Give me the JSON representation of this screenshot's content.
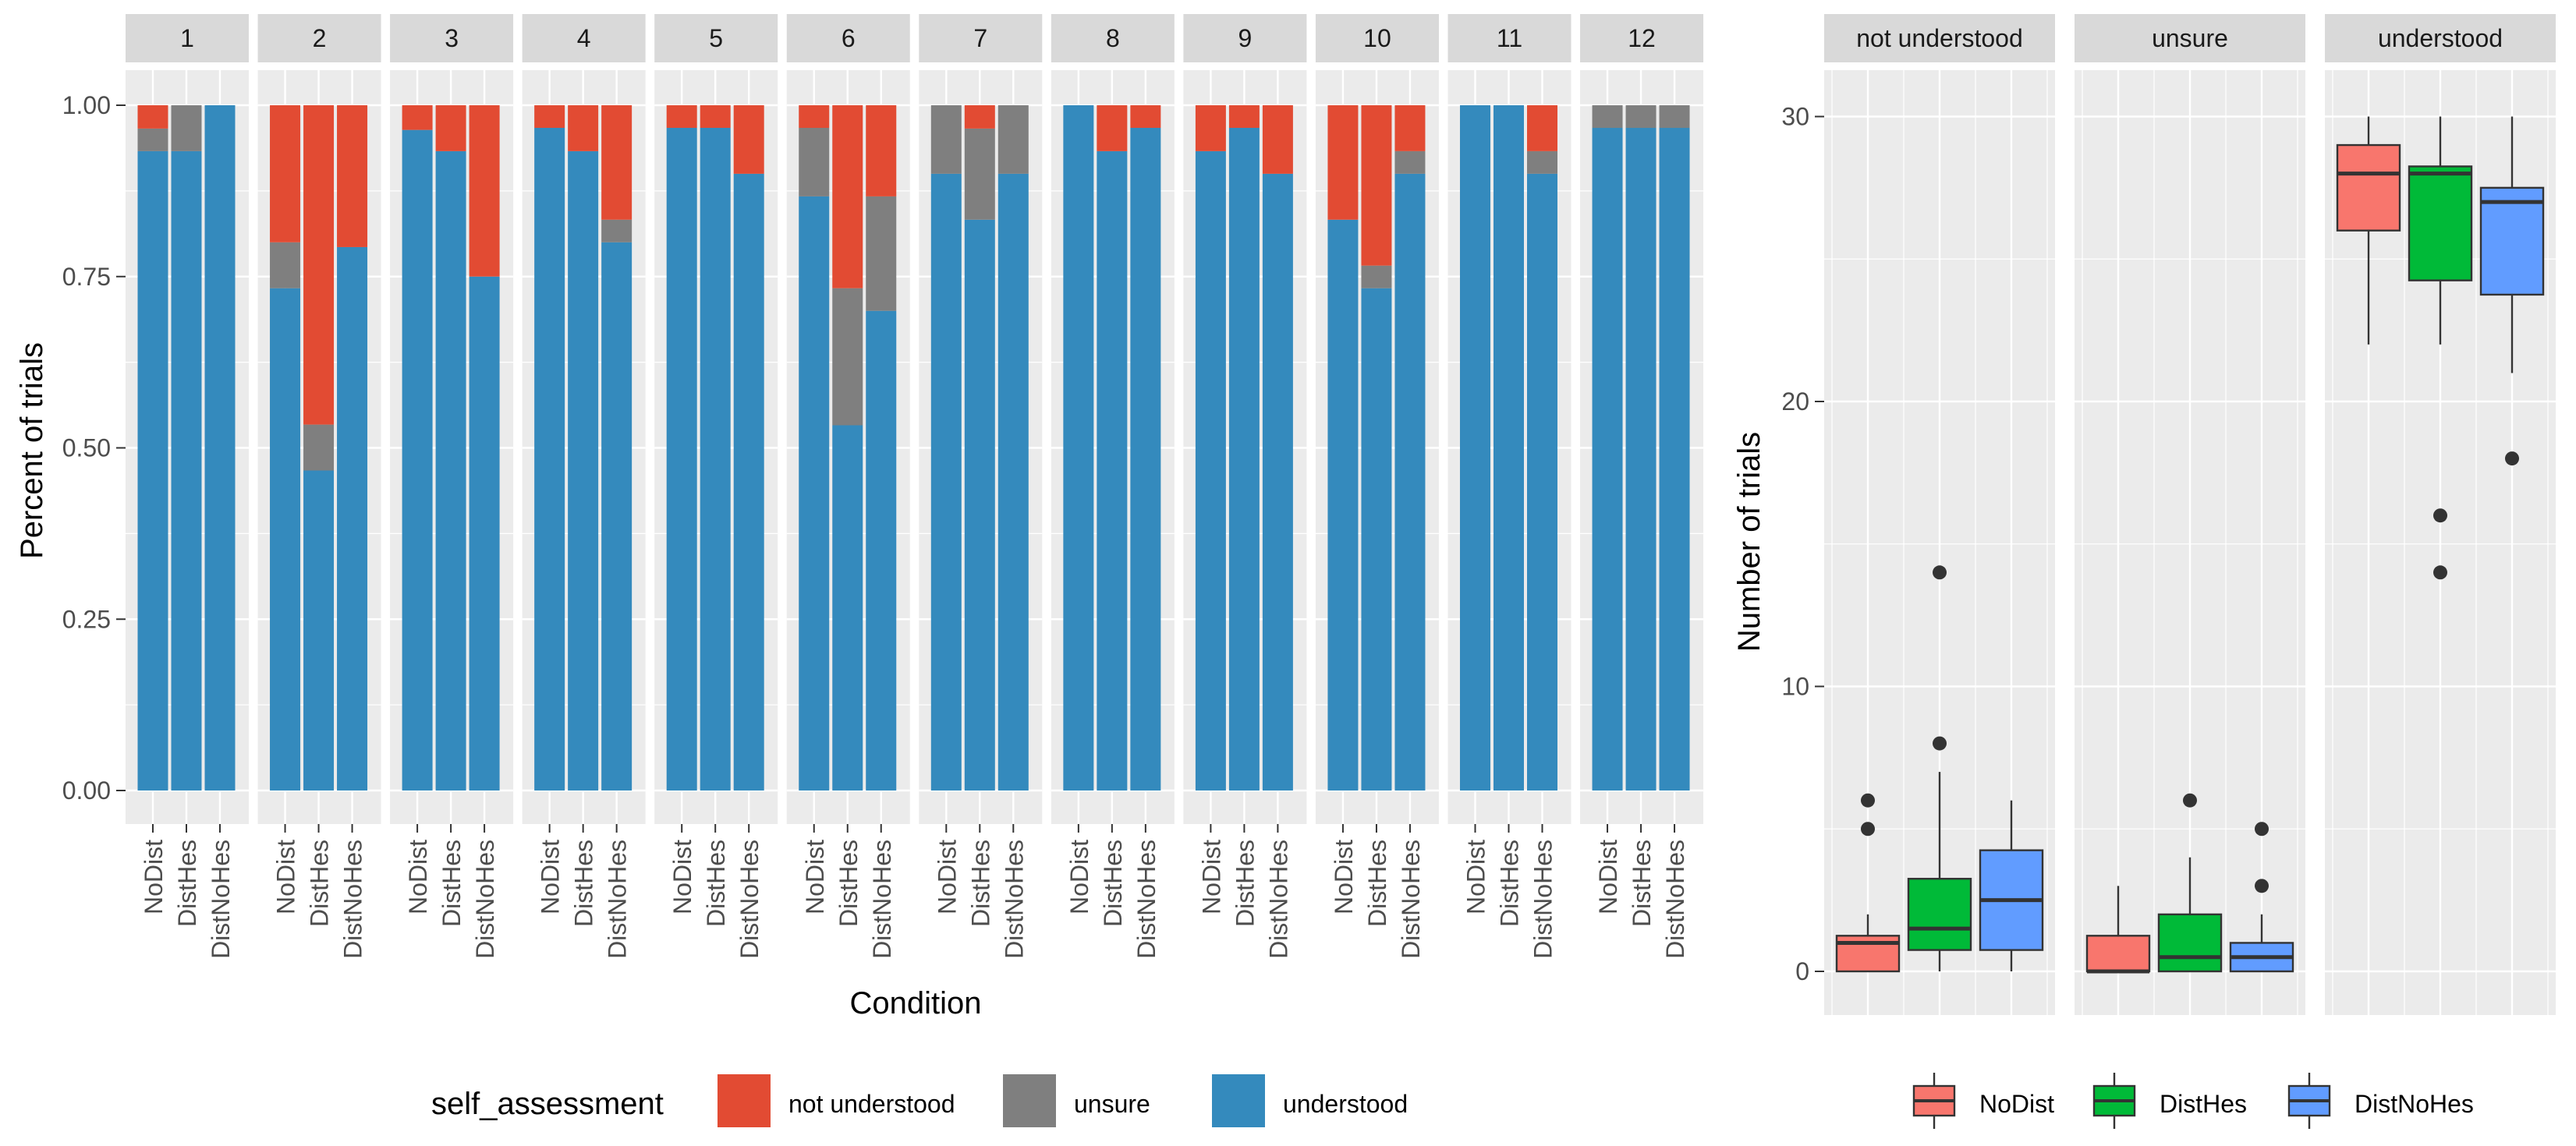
{
  "colors": {
    "not understood": "#E24B33",
    "unsure": "#7F7F7F",
    "understood": "#348ABD",
    "NoDist": "#F8766D",
    "DistHes": "#00BA38",
    "DistNoHes": "#619CFF",
    "panel_bg": "#EBEBEB",
    "strip_bg": "#D9D9D9",
    "grid": "#FFFFFF"
  },
  "chart_data": [
    {
      "type": "bar",
      "subtype": "stacked-percent-facet",
      "title": "",
      "xlabel": "Condition",
      "ylabel": "Percent of trials",
      "ylim": [
        0,
        1
      ],
      "yticks": [
        "0.00",
        "0.25",
        "0.50",
        "0.75",
        "1.00"
      ],
      "categories": [
        "NoDist",
        "DistHes",
        "DistNoHes"
      ],
      "legend": {
        "title": "self_assessment",
        "position": "bottom",
        "entries": [
          "not understood",
          "unsure",
          "understood"
        ]
      },
      "facets": [
        {
          "label": "1",
          "bars": [
            {
              "understood": 0.933,
              "unsure": 0.033,
              "not understood": 0.034
            },
            {
              "understood": 0.933,
              "unsure": 0.067,
              "not understood": 0.0
            },
            {
              "understood": 1.0,
              "unsure": 0.0,
              "not understood": 0.0
            }
          ]
        },
        {
          "label": "2",
          "bars": [
            {
              "understood": 0.733,
              "unsure": 0.067,
              "not understood": 0.2
            },
            {
              "understood": 0.467,
              "unsure": 0.067,
              "not understood": 0.466
            },
            {
              "understood": 0.793,
              "unsure": 0.0,
              "not understood": 0.207
            }
          ]
        },
        {
          "label": "3",
          "bars": [
            {
              "understood": 0.964,
              "unsure": 0.0,
              "not understood": 0.036
            },
            {
              "understood": 0.933,
              "unsure": 0.0,
              "not understood": 0.067
            },
            {
              "understood": 0.75,
              "unsure": 0.0,
              "not understood": 0.25
            }
          ]
        },
        {
          "label": "4",
          "bars": [
            {
              "understood": 0.967,
              "unsure": 0.0,
              "not understood": 0.033
            },
            {
              "understood": 0.933,
              "unsure": 0.0,
              "not understood": 0.067
            },
            {
              "understood": 0.8,
              "unsure": 0.033,
              "not understood": 0.167
            }
          ]
        },
        {
          "label": "5",
          "bars": [
            {
              "understood": 0.967,
              "unsure": 0.0,
              "not understood": 0.033
            },
            {
              "understood": 0.967,
              "unsure": 0.0,
              "not understood": 0.033
            },
            {
              "understood": 0.9,
              "unsure": 0.0,
              "not understood": 0.1
            }
          ]
        },
        {
          "label": "6",
          "bars": [
            {
              "understood": 0.867,
              "unsure": 0.1,
              "not understood": 0.033
            },
            {
              "understood": 0.533,
              "unsure": 0.2,
              "not understood": 0.267
            },
            {
              "understood": 0.7,
              "unsure": 0.167,
              "not understood": 0.133
            }
          ]
        },
        {
          "label": "7",
          "bars": [
            {
              "understood": 0.9,
              "unsure": 0.1,
              "not understood": 0.0
            },
            {
              "understood": 0.833,
              "unsure": 0.133,
              "not understood": 0.034
            },
            {
              "understood": 0.9,
              "unsure": 0.1,
              "not understood": 0.0
            }
          ]
        },
        {
          "label": "8",
          "bars": [
            {
              "understood": 1.0,
              "unsure": 0.0,
              "not understood": 0.0
            },
            {
              "understood": 0.933,
              "unsure": 0.0,
              "not understood": 0.067
            },
            {
              "understood": 0.967,
              "unsure": 0.0,
              "not understood": 0.033
            }
          ]
        },
        {
          "label": "9",
          "bars": [
            {
              "understood": 0.933,
              "unsure": 0.0,
              "not understood": 0.067
            },
            {
              "understood": 0.967,
              "unsure": 0.0,
              "not understood": 0.033
            },
            {
              "understood": 0.9,
              "unsure": 0.0,
              "not understood": 0.1
            }
          ]
        },
        {
          "label": "10",
          "bars": [
            {
              "understood": 0.833,
              "unsure": 0.0,
              "not understood": 0.167
            },
            {
              "understood": 0.733,
              "unsure": 0.033,
              "not understood": 0.234
            },
            {
              "understood": 0.9,
              "unsure": 0.033,
              "not understood": 0.067
            }
          ]
        },
        {
          "label": "11",
          "bars": [
            {
              "understood": 1.0,
              "unsure": 0.0,
              "not understood": 0.0
            },
            {
              "understood": 1.0,
              "unsure": 0.0,
              "not understood": 0.0
            },
            {
              "understood": 0.9,
              "unsure": 0.033,
              "not understood": 0.067
            }
          ]
        },
        {
          "label": "12",
          "bars": [
            {
              "understood": 0.967,
              "unsure": 0.033,
              "not understood": 0.0
            },
            {
              "understood": 0.967,
              "unsure": 0.033,
              "not understood": 0.0
            },
            {
              "understood": 0.967,
              "unsure": 0.033,
              "not understood": 0.0
            }
          ]
        }
      ]
    },
    {
      "type": "boxplot",
      "subtype": "facet",
      "title": "",
      "xlabel": "",
      "ylabel": "Number of trials",
      "ylim": [
        -1.5,
        32
      ],
      "yticks": [
        "0",
        "10",
        "20",
        "30"
      ],
      "ytick_values": [
        0,
        10,
        20,
        30
      ],
      "legend": {
        "title": "",
        "position": "bottom",
        "entries": [
          "NoDist",
          "DistHes",
          "DistNoHes"
        ]
      },
      "facets": [
        {
          "label": "not understood",
          "boxes": [
            {
              "group": "NoDist",
              "whisker_low": 0,
              "q1": 0,
              "median": 1,
              "q3": 1.25,
              "whisker_high": 2,
              "outliers": [
                5,
                6
              ]
            },
            {
              "group": "DistHes",
              "whisker_low": 0,
              "q1": 0.75,
              "median": 1.5,
              "q3": 3.25,
              "whisker_high": 7,
              "outliers": [
                8,
                14
              ]
            },
            {
              "group": "DistNoHes",
              "whisker_low": 0,
              "q1": 0.75,
              "median": 2.5,
              "q3": 4.25,
              "whisker_high": 6,
              "outliers": []
            }
          ]
        },
        {
          "label": "unsure",
          "boxes": [
            {
              "group": "NoDist",
              "whisker_low": 0,
              "q1": 0,
              "median": 0,
              "q3": 1.25,
              "whisker_high": 3,
              "outliers": []
            },
            {
              "group": "DistHes",
              "whisker_low": 0,
              "q1": 0,
              "median": 0.5,
              "q3": 2,
              "whisker_high": 4,
              "outliers": [
                6
              ]
            },
            {
              "group": "DistNoHes",
              "whisker_low": 0,
              "q1": 0,
              "median": 0.5,
              "q3": 1,
              "whisker_high": 2,
              "outliers": [
                3,
                5
              ]
            }
          ]
        },
        {
          "label": "understood",
          "boxes": [
            {
              "group": "NoDist",
              "whisker_low": 22,
              "q1": 26,
              "median": 28,
              "q3": 29,
              "whisker_high": 30,
              "outliers": []
            },
            {
              "group": "DistHes",
              "whisker_low": 22,
              "q1": 24.25,
              "median": 28,
              "q3": 28.25,
              "whisker_high": 30,
              "outliers": [
                14,
                16
              ]
            },
            {
              "group": "DistNoHes",
              "whisker_low": 21,
              "q1": 23.75,
              "median": 27,
              "q3": 27.5,
              "whisker_high": 30,
              "outliers": [
                18
              ]
            }
          ]
        }
      ]
    }
  ]
}
